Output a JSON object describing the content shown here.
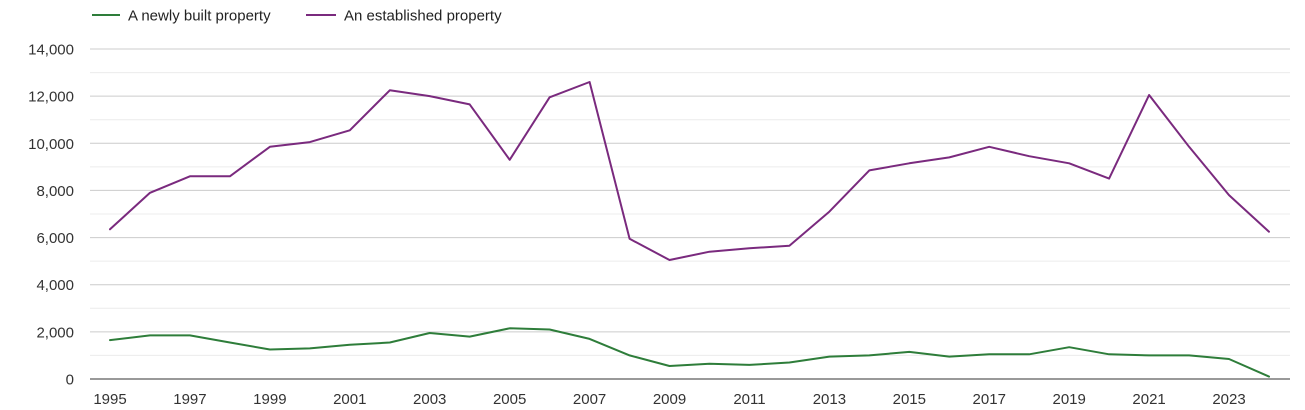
{
  "chart_data": {
    "type": "line",
    "title": "",
    "xlabel": "",
    "ylabel": "",
    "x": [
      1995,
      1996,
      1997,
      1998,
      1999,
      2000,
      2001,
      2002,
      2003,
      2004,
      2005,
      2006,
      2007,
      2008,
      2009,
      2010,
      2011,
      2012,
      2013,
      2014,
      2015,
      2016,
      2017,
      2018,
      2019,
      2020,
      2021,
      2022,
      2023,
      2024
    ],
    "x_tick_labels": [
      "1995",
      "1997",
      "1999",
      "2001",
      "2003",
      "2005",
      "2007",
      "2009",
      "2011",
      "2013",
      "2015",
      "2017",
      "2019",
      "2021",
      "2023"
    ],
    "x_tick_values": [
      1995,
      1997,
      1999,
      2001,
      2003,
      2005,
      2007,
      2009,
      2011,
      2013,
      2015,
      2017,
      2019,
      2021,
      2023
    ],
    "xlim": [
      1995,
      2024
    ],
    "ylim": [
      0,
      14000
    ],
    "y_ticks": [
      0,
      2000,
      4000,
      6000,
      8000,
      10000,
      12000,
      14000
    ],
    "y_tick_labels": [
      "0",
      "2,000",
      "4,000",
      "6,000",
      "8,000",
      "10,000",
      "12,000",
      "14,000"
    ],
    "grid": true,
    "legend_position": "top-left",
    "series": [
      {
        "name": "A newly built property",
        "color": "#2e7d3a",
        "values": [
          1650,
          1850,
          1850,
          1550,
          1250,
          1300,
          1450,
          1550,
          1950,
          1800,
          2150,
          2100,
          1700,
          1000,
          550,
          650,
          600,
          700,
          950,
          1000,
          1150,
          950,
          1050,
          1050,
          1350,
          1050,
          1000,
          1000,
          850,
          100
        ]
      },
      {
        "name": "An established property",
        "color": "#7a2a7e",
        "values": [
          6350,
          7900,
          8600,
          8600,
          9850,
          10050,
          10550,
          12250,
          12000,
          11650,
          9300,
          11950,
          12600,
          5950,
          5050,
          5400,
          5550,
          5650,
          7100,
          8850,
          9150,
          9400,
          9850,
          9450,
          9150,
          8500,
          12050,
          9850,
          7800,
          6250
        ]
      }
    ]
  }
}
